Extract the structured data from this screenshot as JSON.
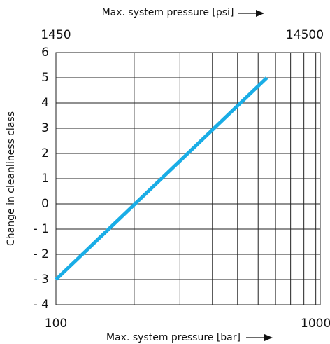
{
  "chart_data": {
    "type": "line",
    "xlabel": "Max. system pressure [bar]",
    "x2label": "Max. system pressure [psi]",
    "ylabel": "Change in cleanliness class",
    "xscale": "log",
    "xlim": [
      100,
      1040
    ],
    "xticks": [
      100,
      1000
    ],
    "xminor": [
      200,
      300,
      400,
      500,
      600,
      700,
      800,
      900
    ],
    "x2lim": [
      1450,
      15080
    ],
    "x2ticks": [
      1450,
      14500
    ],
    "ylim": [
      -4,
      6
    ],
    "yticks": [
      {
        "value": -4,
        "label": "- 4"
      },
      {
        "value": -3,
        "label": "- 3"
      },
      {
        "value": -2,
        "label": "- 2"
      },
      {
        "value": -1,
        "label": "- 1"
      },
      0,
      1,
      2,
      3,
      4,
      5,
      6
    ],
    "grid": true,
    "series": [
      {
        "color": "#19ade6",
        "x": [
          100,
          648
        ],
        "values": [
          -3,
          5
        ]
      }
    ]
  }
}
